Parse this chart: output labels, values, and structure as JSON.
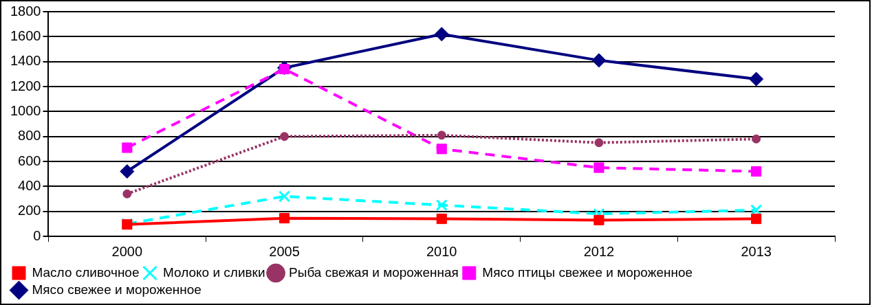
{
  "chart_data": {
    "type": "line",
    "categories": [
      "2000",
      "2005",
      "2010",
      "2012",
      "2013"
    ],
    "series": [
      {
        "name": "Мясо свежее и мороженное",
        "color": "#000080",
        "marker": "diamond",
        "line_style": "solid",
        "values": [
          520,
          1350,
          1620,
          1410,
          1260
        ]
      },
      {
        "name": "Мясо птицы свежее и мороженное",
        "color": "#ff00ff",
        "marker": "square",
        "line_style": "dashed",
        "values": [
          710,
          1340,
          700,
          550,
          520
        ]
      },
      {
        "name": "Рыба свежая и мороженная",
        "color": "#993366",
        "marker": "circle",
        "line_style": "dotted",
        "values": [
          340,
          800,
          810,
          750,
          780
        ]
      },
      {
        "name": "Молоко и сливки",
        "color": "#00ffff",
        "marker": "cross",
        "line_style": "dashed",
        "values": [
          100,
          320,
          250,
          180,
          210
        ]
      },
      {
        "name": "Масло сливочное",
        "color": "#ff0000",
        "marker": "square",
        "line_style": "solid",
        "values": [
          95,
          145,
          140,
          130,
          140
        ]
      }
    ],
    "ylim": [
      0,
      1800
    ],
    "yticks": [
      0,
      200,
      400,
      600,
      800,
      1000,
      1200,
      1400,
      1600,
      1800
    ],
    "grid": "y",
    "legend": "bottom"
  }
}
